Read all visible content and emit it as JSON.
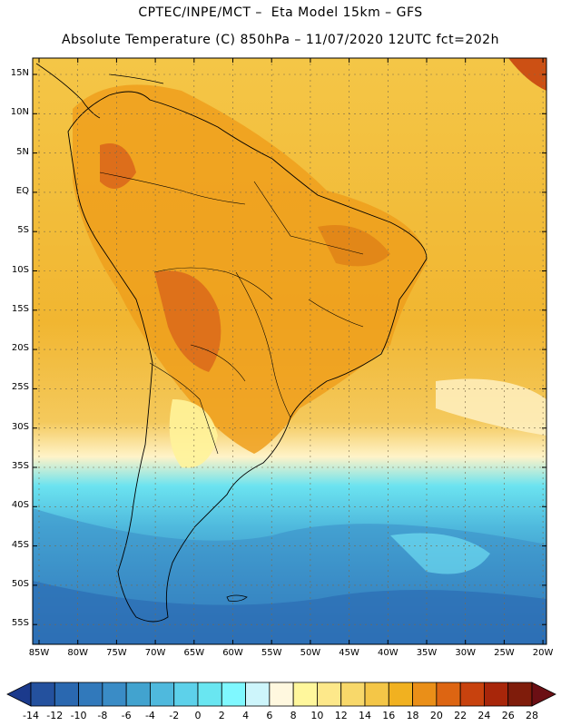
{
  "header": {
    "line1": "CPTEC/INPE/MCT –  Eta Model 15km – GFS",
    "line2": "Absolute Temperature (C) 850hPa – 11/07/2020 12UTC fct=202h"
  },
  "map": {
    "lat_labels": [
      "15N",
      "10N",
      "5N",
      "EQ",
      "5S",
      "10S",
      "15S",
      "20S",
      "25S",
      "30S",
      "35S",
      "40S",
      "45S",
      "50S",
      "55S"
    ],
    "lon_labels": [
      "85W",
      "80W",
      "75W",
      "70W",
      "65W",
      "60W",
      "55W",
      "50W",
      "45W",
      "40W",
      "35W",
      "30W",
      "25W",
      "20W"
    ],
    "grid": true
  },
  "colorbar": {
    "ticks": [
      "-14",
      "-12",
      "-10",
      "-8",
      "-6",
      "-4",
      "-2",
      "0",
      "2",
      "4",
      "6",
      "8",
      "10",
      "12",
      "14",
      "16",
      "18",
      "20",
      "22",
      "24",
      "26",
      "28"
    ],
    "colors": [
      "#1b3a8c",
      "#24519e",
      "#2a68b0",
      "#3179bb",
      "#3a8cc6",
      "#42a3cf",
      "#4fb9dd",
      "#5dd1ea",
      "#69e6f1",
      "#7ff8ff",
      "#cdf5fb",
      "#fff8df",
      "#fff79c",
      "#fde88a",
      "#f8d86a",
      "#f4c647",
      "#f1b120",
      "#ea8f18",
      "#dd6512",
      "#c8420e",
      "#a8260a",
      "#7f1c0b",
      "#6b0f14"
    ]
  }
}
